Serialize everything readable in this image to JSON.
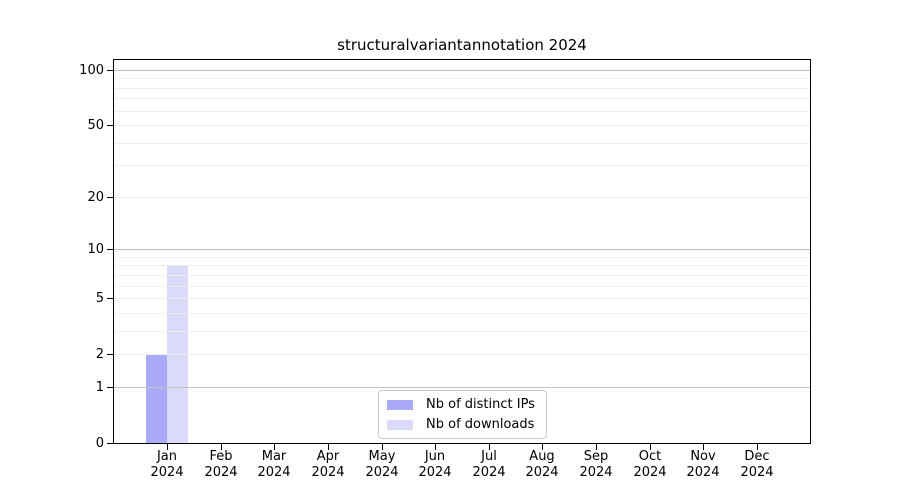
{
  "chart_data": {
    "type": "bar",
    "title": "structuralvariantannotation 2024",
    "categories": [
      "Jan",
      "Feb",
      "Mar",
      "Apr",
      "May",
      "Jun",
      "Jul",
      "Aug",
      "Sep",
      "Oct",
      "Nov",
      "Dec"
    ],
    "year_label": "2024",
    "series": [
      {
        "name": "Nb of distinct IPs",
        "color": "#abaaf8",
        "values": [
          2,
          0,
          0,
          0,
          0,
          0,
          0,
          0,
          0,
          0,
          0,
          0
        ]
      },
      {
        "name": "Nb of downloads",
        "color": "#dcdaf9",
        "values": [
          8,
          0,
          0,
          0,
          0,
          0,
          0,
          0,
          0,
          0,
          0,
          0
        ]
      }
    ],
    "y_scale": "log1p",
    "ylim": [
      0,
      100
    ],
    "y_ticks": [
      0,
      1,
      2,
      5,
      10,
      20,
      50,
      100
    ],
    "gridlines": {
      "major": [
        1,
        10,
        100
      ],
      "minor": [
        2,
        3,
        4,
        5,
        6,
        7,
        8,
        9,
        20,
        30,
        40,
        50,
        60,
        70,
        80,
        90
      ]
    },
    "grid_color_major": "#c2c2c2",
    "grid_color_minor": "#eeeeee",
    "legend_position": "bottom-center",
    "grid": "on"
  }
}
